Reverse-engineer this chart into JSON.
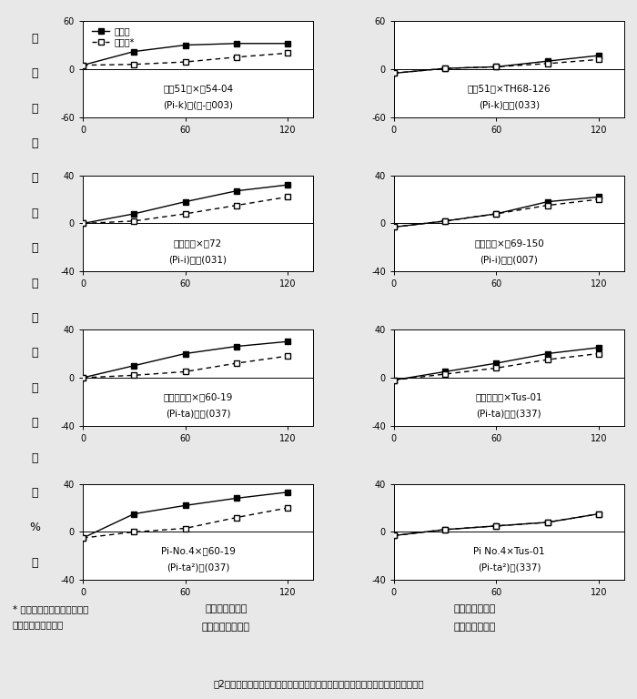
{
  "subplots": [
    {
      "row": 0,
      "col": 0,
      "title_line1": "関村51号×研54-04",
      "title_line2": "(Pi-k)　(レ-ス003)",
      "ylim": [
        -60,
        60
      ],
      "yticks": [
        -60,
        0,
        60
      ],
      "xlim": [
        0,
        135
      ],
      "xticks": [
        0,
        60,
        120
      ],
      "solid_x": [
        0,
        30,
        60,
        90,
        120
      ],
      "solid_y": [
        5,
        22,
        30,
        32,
        32
      ],
      "dashed_x": [
        0,
        30,
        60,
        90,
        120
      ],
      "dashed_y": [
        5,
        6,
        9,
        15,
        20
      ],
      "show_legend": true
    },
    {
      "row": 0,
      "col": 1,
      "title_line1": "関村51号×TH68-126",
      "title_line2": "(Pi-k)　　(033)",
      "ylim": [
        -60,
        60
      ],
      "yticks": [
        -60,
        0,
        60
      ],
      "xlim": [
        0,
        135
      ],
      "xticks": [
        0,
        60,
        120
      ],
      "solid_x": [
        0,
        30,
        60,
        90,
        120
      ],
      "solid_y": [
        -5,
        1,
        3,
        10,
        17
      ],
      "dashed_x": [
        0,
        30,
        60,
        90,
        120
      ],
      "dashed_y": [
        -5,
        1,
        3,
        7,
        12
      ],
      "show_legend": false
    },
    {
      "row": 1,
      "col": 0,
      "title_line1": "石狩白毛×稲72",
      "title_line2": "(Pi-i)　　(031)",
      "ylim": [
        -40,
        40
      ],
      "yticks": [
        -40,
        0,
        40
      ],
      "xlim": [
        0,
        135
      ],
      "xticks": [
        0,
        60,
        120
      ],
      "solid_x": [
        0,
        30,
        60,
        90,
        120
      ],
      "solid_y": [
        0,
        8,
        18,
        27,
        32
      ],
      "dashed_x": [
        0,
        30,
        60,
        90,
        120
      ],
      "dashed_y": [
        0,
        2,
        8,
        15,
        22
      ],
      "show_legend": false
    },
    {
      "row": 1,
      "col": 1,
      "title_line1": "石狩白毛×长69-150",
      "title_line2": "(Pi-i)　　(007)",
      "ylim": [
        -40,
        40
      ],
      "yticks": [
        -40,
        0,
        40
      ],
      "xlim": [
        0,
        135
      ],
      "xticks": [
        0,
        60,
        120
      ],
      "solid_x": [
        0,
        30,
        60,
        90,
        120
      ],
      "solid_y": [
        -3,
        2,
        8,
        18,
        22
      ],
      "dashed_x": [
        0,
        30,
        60,
        90,
        120
      ],
      "dashed_y": [
        -3,
        2,
        8,
        15,
        20
      ],
      "show_legend": false
    },
    {
      "row": 2,
      "col": 0,
      "title_line1": "ヤシロモチ×研60-19",
      "title_line2": "(Pi-ta)　　(037)",
      "ylim": [
        -40,
        40
      ],
      "yticks": [
        -40,
        0,
        40
      ],
      "xlim": [
        0,
        135
      ],
      "xticks": [
        0,
        60,
        120
      ],
      "solid_x": [
        0,
        30,
        60,
        90,
        120
      ],
      "solid_y": [
        0,
        10,
        20,
        26,
        30
      ],
      "dashed_x": [
        0,
        30,
        60,
        90,
        120
      ],
      "dashed_y": [
        0,
        2,
        5,
        12,
        18
      ],
      "show_legend": false
    },
    {
      "row": 2,
      "col": 1,
      "title_line1": "ヤシロモチ×Tus-01",
      "title_line2": "(Pi-ta)　　(337)",
      "ylim": [
        -40,
        40
      ],
      "yticks": [
        -40,
        0,
        40
      ],
      "xlim": [
        0,
        135
      ],
      "xticks": [
        0,
        60,
        120
      ],
      "solid_x": [
        0,
        30,
        60,
        90,
        120
      ],
      "solid_y": [
        -2,
        5,
        12,
        20,
        25
      ],
      "dashed_x": [
        0,
        30,
        60,
        90,
        120
      ],
      "dashed_y": [
        -2,
        3,
        8,
        15,
        20
      ],
      "show_legend": false
    },
    {
      "row": 3,
      "col": 0,
      "title_line1": "Pi-No.4×研60-19",
      "title_line2": "(Pi-ta²)　(037)",
      "ylim": [
        -40,
        40
      ],
      "yticks": [
        -40,
        0,
        40
      ],
      "xlim": [
        0,
        135
      ],
      "xticks": [
        0,
        60,
        120
      ],
      "solid_x": [
        0,
        30,
        60,
        90,
        120
      ],
      "solid_y": [
        -5,
        15,
        22,
        28,
        33
      ],
      "dashed_x": [
        0,
        30,
        60,
        90,
        120
      ],
      "dashed_y": [
        -5,
        0,
        3,
        12,
        20
      ],
      "show_legend": false
    },
    {
      "row": 3,
      "col": 1,
      "title_line1": "Pi No.4×Tus-01",
      "title_line2": "(Pi-ta²)　(337)",
      "ylim": [
        -40,
        40
      ],
      "yticks": [
        -40,
        0,
        40
      ],
      "xlim": [
        0,
        135
      ],
      "xticks": [
        0,
        60,
        120
      ],
      "solid_x": [
        0,
        30,
        60,
        90,
        120
      ],
      "solid_y": [
        -3,
        2,
        5,
        8,
        15
      ],
      "dashed_x": [
        0,
        30,
        60,
        90,
        120
      ],
      "dashed_y": [
        -3,
        2,
        5,
        8,
        15
      ],
      "show_legend": false
    }
  ],
  "ylabel_chars": [
    "破",
    "裂",
    "プ",
    "ロ",
    "ト",
    "プ",
    "ラ",
    "ス",
    "ト",
    "出",
    "現",
    "比",
    "率",
    "（",
    "%",
    "）"
  ],
  "xlabel_left_line1": "処理時間（分）",
  "xlabel_left_line2": "非親和性の組合せ",
  "xlabel_right_line1": "処理時間（分）",
  "xlabel_right_line2": "親和性の組合せ",
  "footnote_line1": "* 対照区：いもち病菌を培養",
  "footnote_line2": "　しない培地を処理",
  "fig_caption": "囲2　イネ葉身・葉鷨細胞由来プロトプラストのいもち病菌培養濃液に対する反応",
  "legend_solid_label": "処理区",
  "legend_dashed_label": "対照区*",
  "bg_color": "#e8e8e8"
}
